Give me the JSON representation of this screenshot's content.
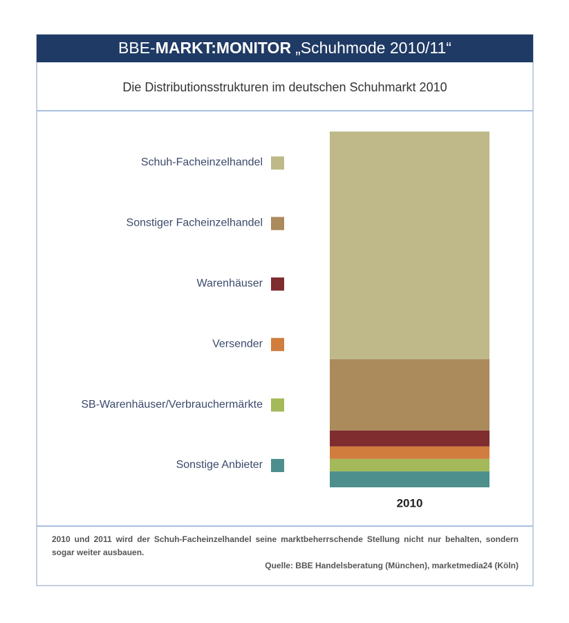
{
  "chart_data": {
    "type": "stacked-bar",
    "title_parts": [
      "BBE-",
      "MARKT:MONITOR",
      "„Schuhmode 2010/11“"
    ],
    "subtitle": "Die Distributionsstrukturen im deutschen Schuhmarkt 2010",
    "categories": [
      "2010"
    ],
    "series": [
      {
        "name": "Schuh-Facheinzelhandel",
        "color": "#bfb98a",
        "values": [
          64
        ]
      },
      {
        "name": "Sonstiger Facheinzelhandel",
        "color": "#ab8a5c",
        "values": [
          20
        ]
      },
      {
        "name": "Warenhäuser",
        "color": "#7f2d2f",
        "values": [
          4.5
        ]
      },
      {
        "name": "Versender",
        "color": "#d07d3d",
        "values": [
          3.5
        ]
      },
      {
        "name": "SB-Warenhäuser/Verbrauchermärkte",
        "color": "#a3b95a",
        "values": [
          3.5
        ]
      },
      {
        "name": "Sonstige Anbieter",
        "color": "#4d8f8c",
        "values": [
          4.5
        ]
      }
    ],
    "note": "2010 und 2011 wird der Schuh-Facheinzelhandel seine marktbeherrschende Stellung nicht nur behalten, sondern sogar weiter ausbauen.",
    "source": "Quelle: BBE Handelsberatung (München), marketmedia24 (Köln)"
  }
}
